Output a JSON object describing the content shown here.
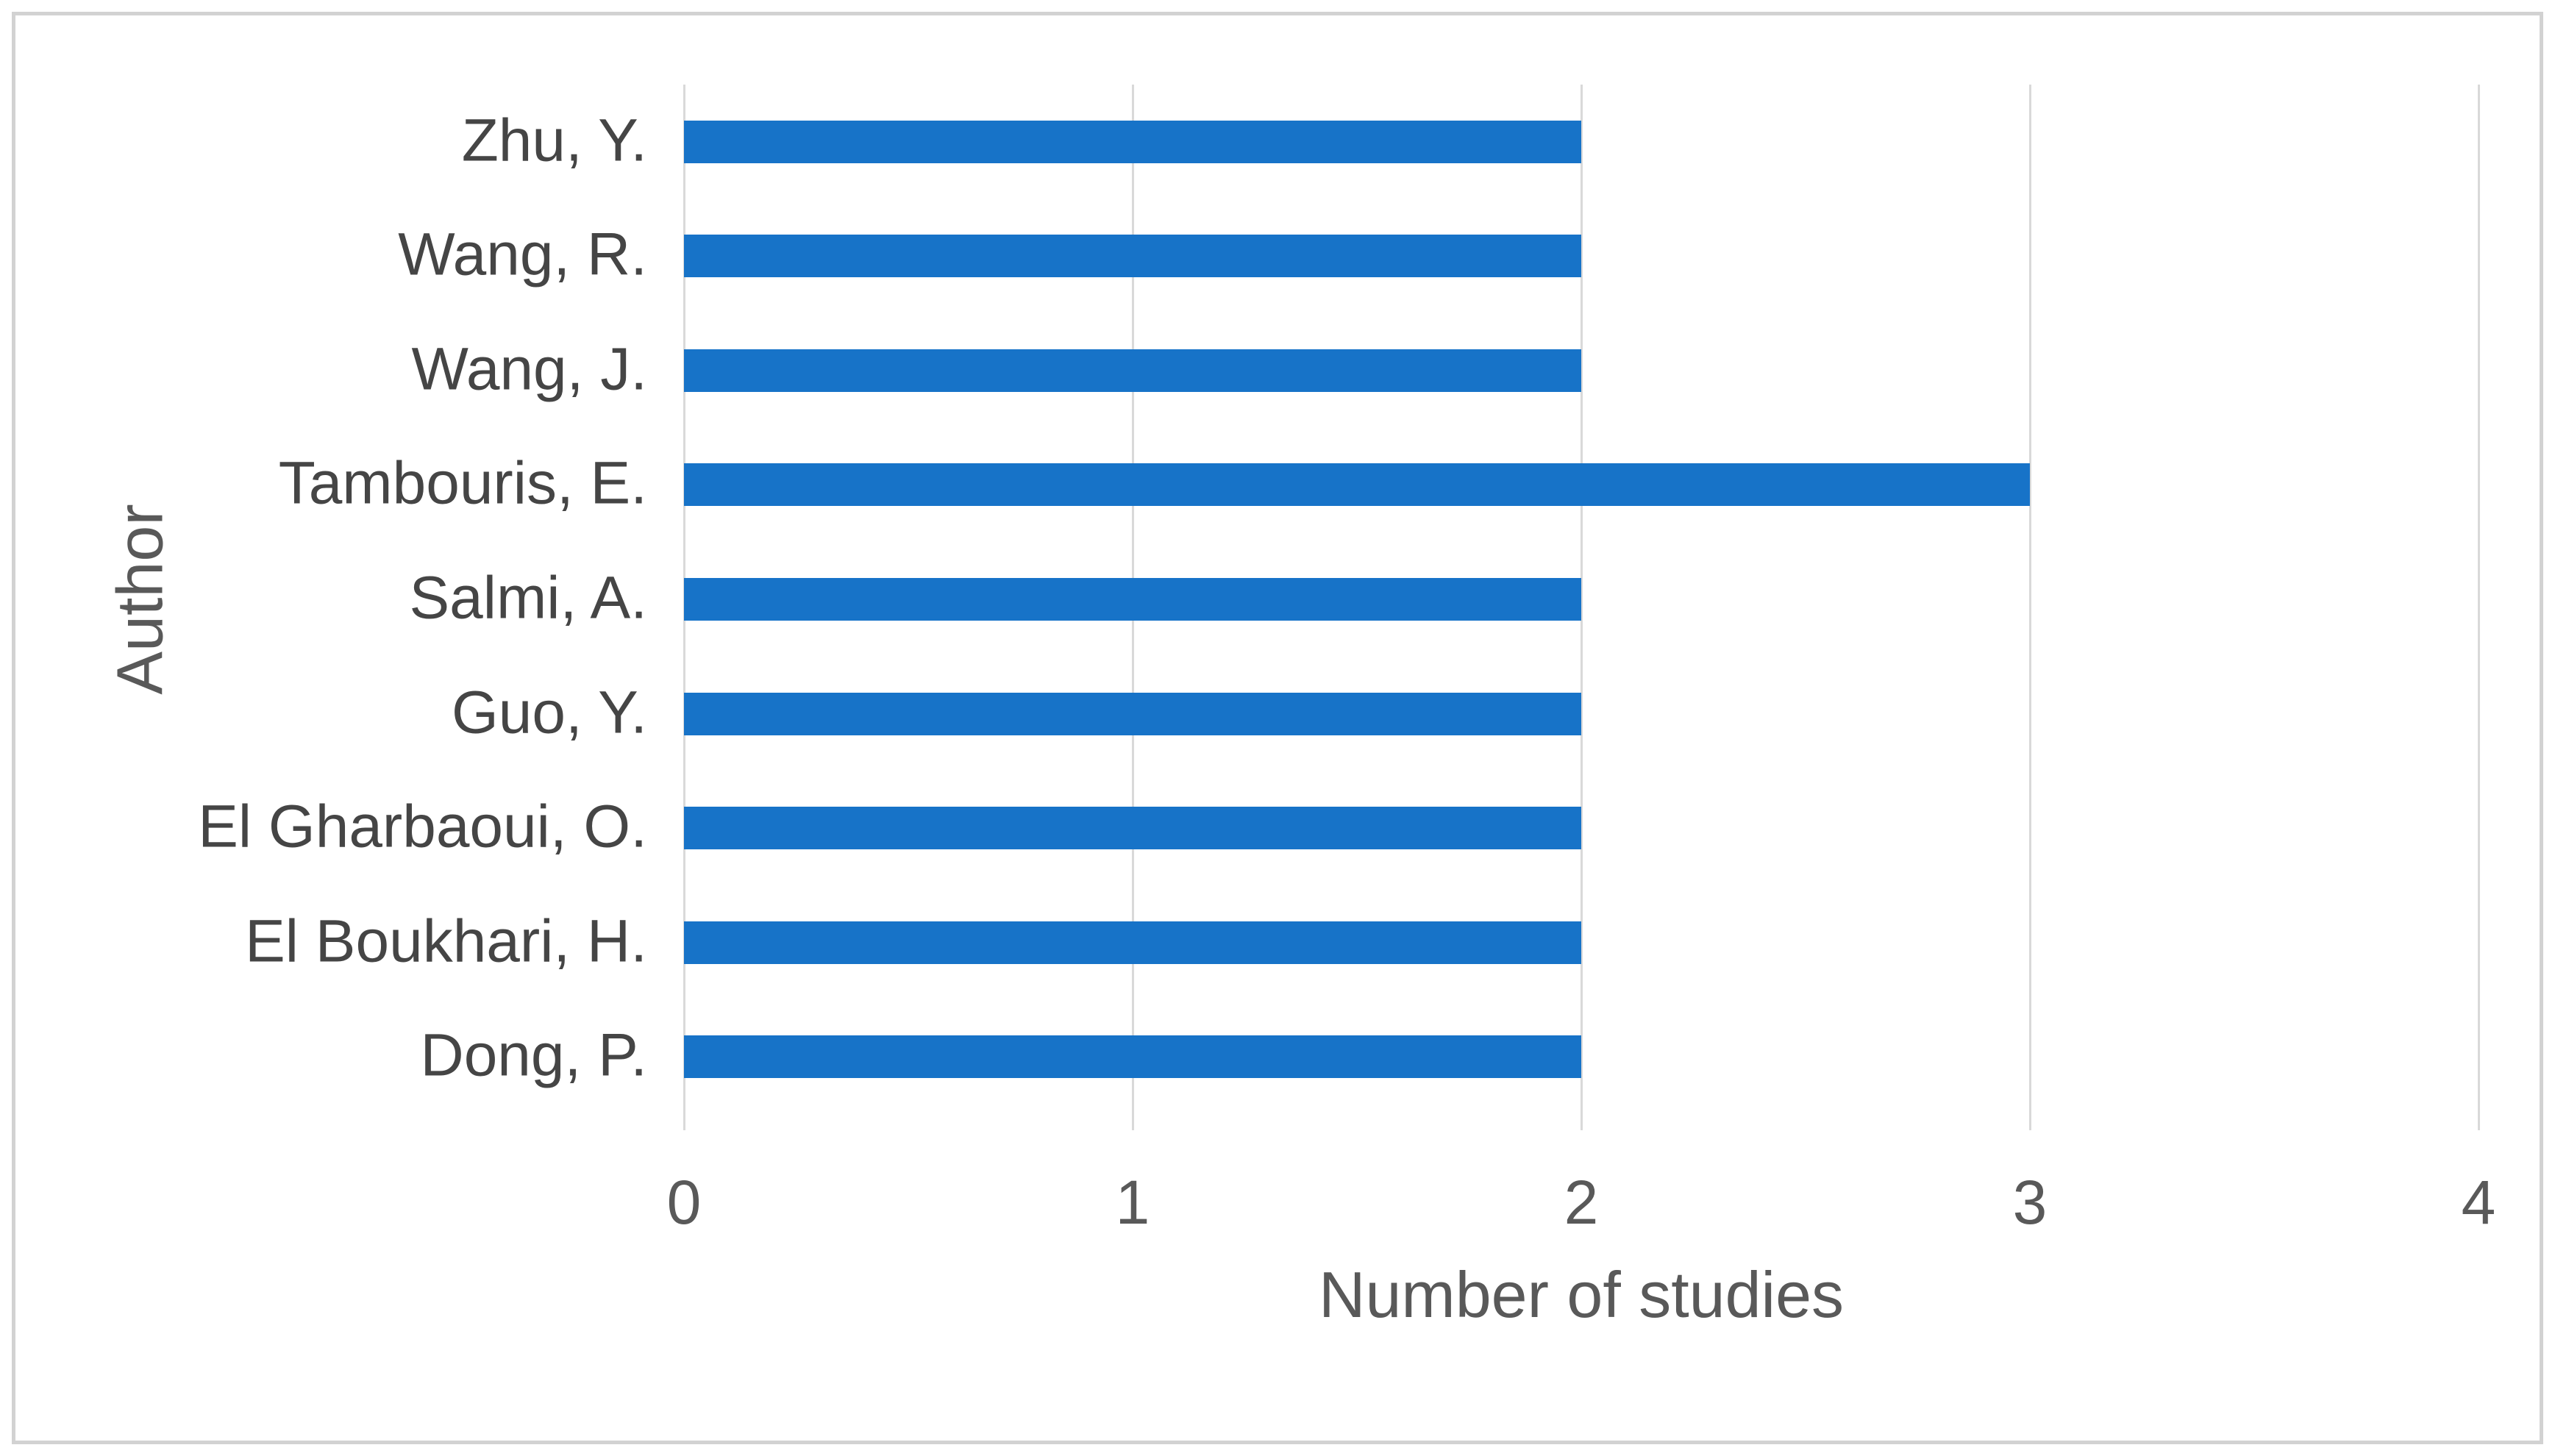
{
  "chart_data": {
    "type": "bar",
    "orientation": "horizontal",
    "title": "",
    "xlabel": "Number of studies",
    "ylabel": "Author",
    "categories": [
      "Zhu, Y.",
      "Wang, R.",
      "Wang, J.",
      "Tambouris, E.",
      "Salmi, A.",
      "Guo, Y.",
      "El Gharbaoui, O.",
      "El Boukhari, H.",
      "Dong, P."
    ],
    "values": [
      2,
      2,
      2,
      3,
      2,
      2,
      2,
      2,
      2
    ],
    "xlim": [
      0,
      4
    ],
    "xticks": [
      "0",
      "1",
      "2",
      "3",
      "4"
    ],
    "grid": "vertical-gridlines",
    "legend": "none",
    "colors": {
      "bar": "#1773C8",
      "gridline": "#d9d9d9",
      "axis_text": "#595959",
      "category_text": "#454545",
      "figure_border": "#d2d2d2",
      "background": "#ffffff"
    }
  }
}
